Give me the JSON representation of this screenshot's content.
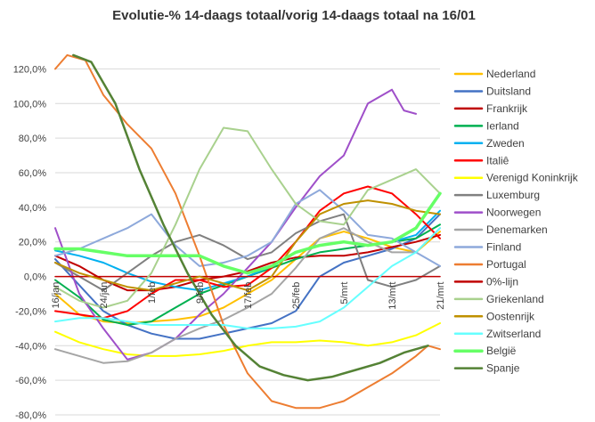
{
  "chart_data": {
    "type": "line",
    "title": "Evolutie-% 14-daags totaal/vorig 14-daags totaal na 16/01",
    "xlabel": "",
    "ylabel": "",
    "x_start": "16/jan",
    "x_end": "21/mrt",
    "x_ticks": [
      "16/jan",
      "24/jan",
      "1/feb",
      "9/feb",
      "17/feb",
      "25/feb",
      "5/mrt",
      "13/mrt",
      "21/mrt"
    ],
    "ylim": [
      -80,
      130
    ],
    "y_ticks": [
      "-80,0%",
      "-60,0%",
      "-40,0%",
      "-20,0%",
      "0,0%",
      "20,0%",
      "40,0%",
      "60,0%",
      "80,0%",
      "100,0%",
      "120,0%"
    ],
    "y_tick_values": [
      -80,
      -60,
      -40,
      -20,
      0,
      20,
      40,
      60,
      80,
      100,
      120
    ],
    "legend_position": "right",
    "series": [
      {
        "name": "Nederland",
        "color": "#FFC000",
        "width": 2,
        "points": [
          [
            0,
            -10
          ],
          [
            4,
            -22
          ],
          [
            8,
            -26
          ],
          [
            12,
            -27
          ],
          [
            16,
            -26
          ],
          [
            20,
            -25
          ],
          [
            24,
            -23
          ],
          [
            28,
            -18
          ],
          [
            32,
            -10
          ],
          [
            36,
            -2
          ],
          [
            40,
            10
          ],
          [
            44,
            22
          ],
          [
            48,
            26
          ],
          [
            52,
            22
          ],
          [
            56,
            17
          ],
          [
            60,
            14
          ],
          [
            64,
            26
          ]
        ]
      },
      {
        "name": "Duitsland",
        "color": "#4472C4",
        "width": 2,
        "points": [
          [
            0,
            10
          ],
          [
            4,
            -5
          ],
          [
            8,
            -20
          ],
          [
            12,
            -28
          ],
          [
            16,
            -33
          ],
          [
            20,
            -36
          ],
          [
            24,
            -36
          ],
          [
            28,
            -33
          ],
          [
            32,
            -30
          ],
          [
            36,
            -27
          ],
          [
            40,
            -20
          ],
          [
            44,
            0
          ],
          [
            48,
            8
          ],
          [
            52,
            12
          ],
          [
            56,
            16
          ],
          [
            60,
            22
          ],
          [
            64,
            36
          ]
        ]
      },
      {
        "name": "Frankrijk",
        "color": "#C00000",
        "width": 2,
        "points": [
          [
            0,
            12
          ],
          [
            4,
            6
          ],
          [
            8,
            -2
          ],
          [
            12,
            -8
          ],
          [
            16,
            -8
          ],
          [
            20,
            -6
          ],
          [
            24,
            -2
          ],
          [
            28,
            0
          ],
          [
            32,
            3
          ],
          [
            36,
            8
          ],
          [
            40,
            11
          ],
          [
            44,
            12
          ],
          [
            48,
            12
          ],
          [
            52,
            14
          ],
          [
            56,
            17
          ],
          [
            60,
            20
          ],
          [
            64,
            24
          ]
        ]
      },
      {
        "name": "Ierland",
        "color": "#00B050",
        "width": 2,
        "points": [
          [
            0,
            -2
          ],
          [
            4,
            -12
          ],
          [
            8,
            -25
          ],
          [
            12,
            -28
          ],
          [
            16,
            -26
          ],
          [
            20,
            -18
          ],
          [
            24,
            -10
          ],
          [
            28,
            -5
          ],
          [
            32,
            0
          ],
          [
            36,
            5
          ],
          [
            40,
            10
          ],
          [
            44,
            14
          ],
          [
            48,
            16
          ],
          [
            52,
            18
          ],
          [
            56,
            20
          ],
          [
            60,
            22
          ],
          [
            64,
            30
          ]
        ]
      },
      {
        "name": "Zweden",
        "color": "#00B0F0",
        "width": 2,
        "points": [
          [
            0,
            15
          ],
          [
            4,
            12
          ],
          [
            8,
            8
          ],
          [
            12,
            2
          ],
          [
            16,
            -3
          ],
          [
            20,
            -6
          ],
          [
            24,
            -8
          ],
          [
            28,
            -4
          ],
          [
            32,
            0
          ],
          [
            36,
            6
          ],
          [
            40,
            14
          ],
          [
            44,
            18
          ],
          [
            48,
            20
          ],
          [
            52,
            18
          ],
          [
            56,
            20
          ],
          [
            60,
            24
          ],
          [
            64,
            38
          ]
        ]
      },
      {
        "name": "Italiê",
        "color": "#FF0000",
        "width": 2,
        "points": [
          [
            0,
            -20
          ],
          [
            4,
            -22
          ],
          [
            8,
            -24
          ],
          [
            12,
            -20
          ],
          [
            16,
            -10
          ],
          [
            20,
            -2
          ],
          [
            24,
            -2
          ],
          [
            28,
            -6
          ],
          [
            32,
            -5
          ],
          [
            36,
            5
          ],
          [
            40,
            20
          ],
          [
            44,
            38
          ],
          [
            48,
            48
          ],
          [
            52,
            52
          ],
          [
            56,
            48
          ],
          [
            60,
            36
          ],
          [
            64,
            22
          ]
        ]
      },
      {
        "name": "Verenigd Koninkrijk",
        "color": "#FFFF00",
        "width": 2,
        "points": [
          [
            0,
            -32
          ],
          [
            4,
            -38
          ],
          [
            8,
            -42
          ],
          [
            12,
            -45
          ],
          [
            16,
            -46
          ],
          [
            20,
            -46
          ],
          [
            24,
            -45
          ],
          [
            28,
            -43
          ],
          [
            32,
            -40
          ],
          [
            36,
            -38
          ],
          [
            40,
            -38
          ],
          [
            44,
            -37
          ],
          [
            48,
            -38
          ],
          [
            52,
            -40
          ],
          [
            56,
            -38
          ],
          [
            60,
            -34
          ],
          [
            64,
            -27
          ]
        ]
      },
      {
        "name": "Luxemburg",
        "color": "#808080",
        "width": 2,
        "points": [
          [
            0,
            8
          ],
          [
            4,
            0
          ],
          [
            8,
            -8
          ],
          [
            12,
            2
          ],
          [
            16,
            12
          ],
          [
            20,
            20
          ],
          [
            24,
            24
          ],
          [
            28,
            18
          ],
          [
            32,
            10
          ],
          [
            36,
            14
          ],
          [
            40,
            25
          ],
          [
            44,
            32
          ],
          [
            48,
            36
          ],
          [
            52,
            -2
          ],
          [
            56,
            -6
          ],
          [
            60,
            -2
          ],
          [
            64,
            6
          ]
        ]
      },
      {
        "name": "Noorwegen",
        "color": "#9F4FC9",
        "width": 2,
        "points": [
          [
            0,
            28
          ],
          [
            4,
            -10
          ],
          [
            8,
            -30
          ],
          [
            12,
            -48
          ],
          [
            16,
            -44
          ],
          [
            20,
            -36
          ],
          [
            24,
            -22
          ],
          [
            28,
            -10
          ],
          [
            32,
            5
          ],
          [
            36,
            20
          ],
          [
            40,
            40
          ],
          [
            44,
            58
          ],
          [
            48,
            70
          ],
          [
            52,
            100
          ],
          [
            56,
            108
          ],
          [
            58,
            96
          ],
          [
            60,
            94
          ]
        ]
      },
      {
        "name": "Denemarken",
        "color": "#A5A5A5",
        "width": 2,
        "points": [
          [
            0,
            -42
          ],
          [
            4,
            -46
          ],
          [
            8,
            -50
          ],
          [
            12,
            -49
          ],
          [
            16,
            -44
          ],
          [
            20,
            -36
          ],
          [
            24,
            -30
          ],
          [
            28,
            -25
          ],
          [
            32,
            -18
          ],
          [
            36,
            -10
          ],
          [
            40,
            5
          ],
          [
            44,
            22
          ],
          [
            48,
            28
          ],
          [
            52,
            20
          ],
          [
            56,
            14
          ],
          [
            60,
            14
          ],
          [
            64,
            28
          ]
        ]
      },
      {
        "name": "Finland",
        "color": "#8EA9DB",
        "width": 2,
        "points": [
          [
            0,
            12
          ],
          [
            4,
            16
          ],
          [
            8,
            22
          ],
          [
            12,
            28
          ],
          [
            16,
            36
          ],
          [
            20,
            18
          ],
          [
            24,
            6
          ],
          [
            28,
            8
          ],
          [
            32,
            12
          ],
          [
            36,
            20
          ],
          [
            40,
            42
          ],
          [
            44,
            50
          ],
          [
            48,
            38
          ],
          [
            52,
            24
          ],
          [
            56,
            22
          ],
          [
            60,
            14
          ],
          [
            64,
            6
          ]
        ]
      },
      {
        "name": "Portugal",
        "color": "#ED7D31",
        "width": 2,
        "points": [
          [
            0,
            120
          ],
          [
            2,
            128
          ],
          [
            5,
            125
          ],
          [
            8,
            105
          ],
          [
            12,
            88
          ],
          [
            16,
            74
          ],
          [
            20,
            48
          ],
          [
            24,
            12
          ],
          [
            28,
            -28
          ],
          [
            32,
            -56
          ],
          [
            36,
            -72
          ],
          [
            40,
            -76
          ],
          [
            44,
            -76
          ],
          [
            48,
            -72
          ],
          [
            52,
            -64
          ],
          [
            56,
            -56
          ],
          [
            60,
            -46
          ],
          [
            62,
            -40
          ],
          [
            64,
            -42
          ]
        ]
      },
      {
        "name": "0%-lijn",
        "color": "#C00000",
        "width": 1.5,
        "points": [
          [
            0,
            0
          ],
          [
            64,
            0
          ]
        ]
      },
      {
        "name": "Griekenland",
        "color": "#A9D18E",
        "width": 2,
        "points": [
          [
            0,
            -6
          ],
          [
            4,
            -14
          ],
          [
            8,
            -18
          ],
          [
            12,
            -14
          ],
          [
            16,
            2
          ],
          [
            20,
            30
          ],
          [
            24,
            62
          ],
          [
            28,
            86
          ],
          [
            32,
            84
          ],
          [
            36,
            62
          ],
          [
            40,
            42
          ],
          [
            44,
            32
          ],
          [
            48,
            30
          ],
          [
            52,
            50
          ],
          [
            56,
            56
          ],
          [
            60,
            62
          ],
          [
            64,
            48
          ]
        ]
      },
      {
        "name": "Oostenrijk",
        "color": "#BF9000",
        "width": 2,
        "points": [
          [
            0,
            8
          ],
          [
            4,
            2
          ],
          [
            8,
            -2
          ],
          [
            12,
            -6
          ],
          [
            16,
            -8
          ],
          [
            20,
            -4
          ],
          [
            24,
            0
          ],
          [
            28,
            -4
          ],
          [
            32,
            -8
          ],
          [
            36,
            0
          ],
          [
            40,
            20
          ],
          [
            44,
            36
          ],
          [
            48,
            42
          ],
          [
            52,
            44
          ],
          [
            56,
            42
          ],
          [
            60,
            38
          ],
          [
            64,
            36
          ]
        ]
      },
      {
        "name": "Zwitserland",
        "color": "#66FFFF",
        "width": 2,
        "points": [
          [
            0,
            -26
          ],
          [
            4,
            -24
          ],
          [
            8,
            -24
          ],
          [
            12,
            -26
          ],
          [
            16,
            -28
          ],
          [
            20,
            -28
          ],
          [
            24,
            -28
          ],
          [
            28,
            -28
          ],
          [
            32,
            -30
          ],
          [
            36,
            -30
          ],
          [
            40,
            -29
          ],
          [
            44,
            -26
          ],
          [
            48,
            -18
          ],
          [
            52,
            -6
          ],
          [
            56,
            6
          ],
          [
            60,
            14
          ],
          [
            64,
            28
          ]
        ]
      },
      {
        "name": "België",
        "color": "#66FF66",
        "width": 3.5,
        "points": [
          [
            0,
            16
          ],
          [
            4,
            16
          ],
          [
            8,
            14
          ],
          [
            12,
            12
          ],
          [
            16,
            12
          ],
          [
            20,
            12
          ],
          [
            24,
            12
          ],
          [
            28,
            6
          ],
          [
            32,
            2
          ],
          [
            36,
            6
          ],
          [
            40,
            14
          ],
          [
            44,
            18
          ],
          [
            48,
            20
          ],
          [
            52,
            18
          ],
          [
            56,
            20
          ],
          [
            60,
            28
          ],
          [
            64,
            48
          ]
        ]
      },
      {
        "name": "Spanje",
        "color": "#548235",
        "width": 2.5,
        "points": [
          [
            3,
            128
          ],
          [
            6,
            124
          ],
          [
            10,
            100
          ],
          [
            14,
            62
          ],
          [
            18,
            30
          ],
          [
            22,
            2
          ],
          [
            26,
            -22
          ],
          [
            30,
            -40
          ],
          [
            34,
            -52
          ],
          [
            38,
            -57
          ],
          [
            42,
            -60
          ],
          [
            46,
            -58
          ],
          [
            50,
            -54
          ],
          [
            54,
            -50
          ],
          [
            58,
            -44
          ],
          [
            62,
            -40
          ]
        ]
      }
    ]
  }
}
